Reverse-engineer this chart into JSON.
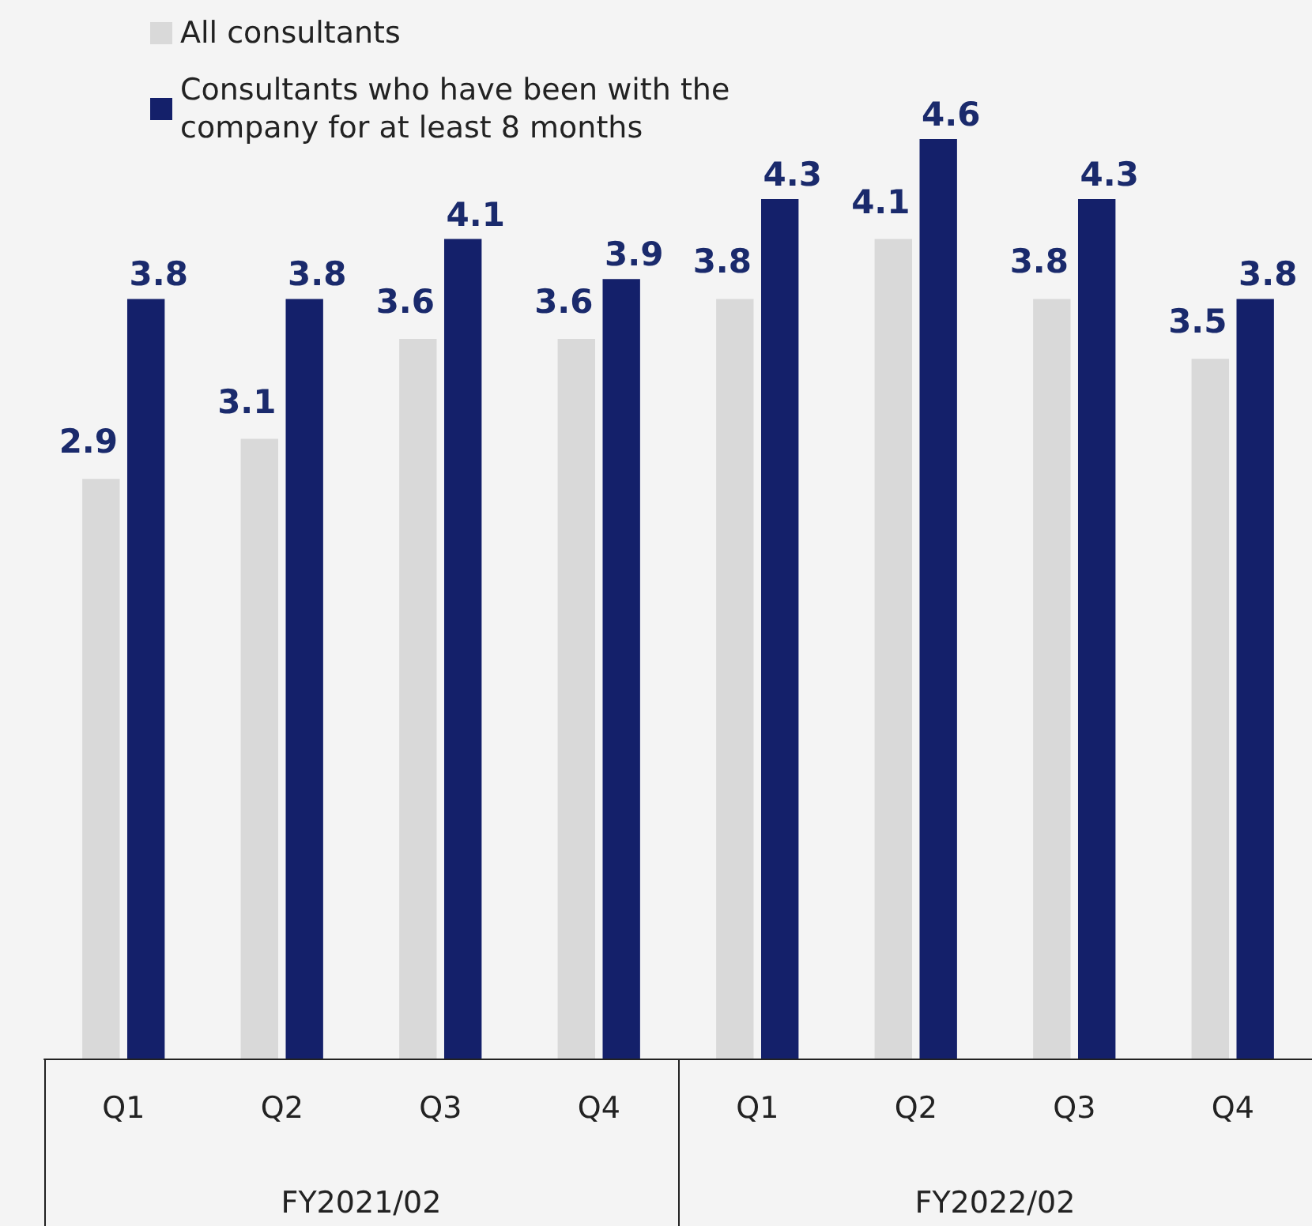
{
  "chart_data": {
    "type": "bar",
    "categories": [
      "Q1",
      "Q2",
      "Q3",
      "Q4",
      "Q1",
      "Q2",
      "Q3",
      "Q4"
    ],
    "series": [
      {
        "name": "All consultants",
        "color": "#d9d9d9",
        "values": [
          2.9,
          3.1,
          3.6,
          3.6,
          3.8,
          4.1,
          3.8,
          3.5
        ]
      },
      {
        "name": "Consultants who have been with the company for at least 8 months",
        "color": "#14206a",
        "values": [
          3.8,
          3.8,
          4.1,
          3.9,
          4.3,
          4.6,
          4.3,
          3.8
        ]
      }
    ],
    "annotations": [
      "FY2021/02",
      "FY2022/02"
    ],
    "data_labels": true,
    "legend": "top left"
  }
}
